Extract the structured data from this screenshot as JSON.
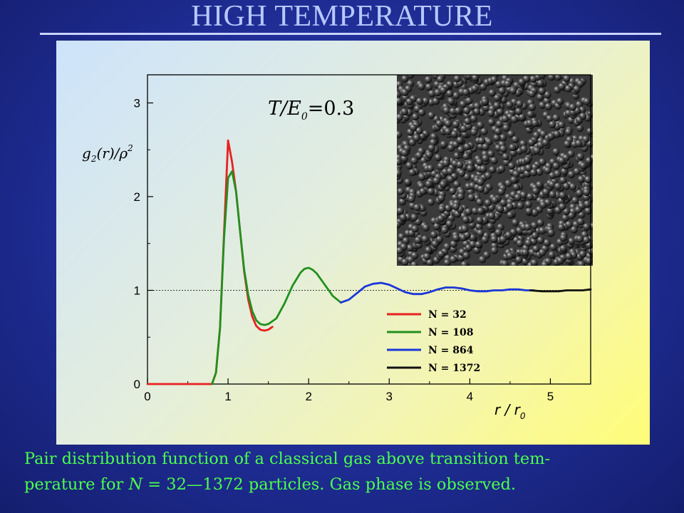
{
  "slide": {
    "title": "HIGH TEMPERATURE",
    "caption_line1": "Pair distribution function of a classical gas above transition tem-",
    "caption_line2_prefix": "perature for ",
    "caption_line2_var": "N",
    "caption_line2_eq": " = 32—1372",
    "caption_line2_suffix": " particles. Gas phase is observed."
  },
  "colors": {
    "title": "#b8c8ff",
    "caption": "#4cff4c",
    "background": "#1f2d95"
  },
  "chart_data": {
    "type": "line",
    "ylabel_main": "g",
    "ylabel_sub": "2",
    "ylabel_rest": "(r)/ρ",
    "ylabel_sup": "2",
    "xlabel_main": "r / r",
    "xlabel_sub": "0",
    "annotation_main": "T/E",
    "annotation_sub": "0",
    "annotation_value": "=0.3",
    "xlim": [
      0,
      5.5
    ],
    "ylim": [
      0,
      3.3
    ],
    "xticks": [
      0,
      1,
      2,
      3,
      4,
      5
    ],
    "yticks": [
      0,
      1,
      2,
      3
    ],
    "reference_line_y": 1,
    "legend_position": "center-right",
    "inset": "snapshot of particle configuration (gas phase)",
    "series": [
      {
        "name": "N = 32",
        "color": "#e82020",
        "x": [
          0,
          0.8,
          0.85,
          0.9,
          0.95,
          1.0,
          1.05,
          1.1,
          1.15,
          1.2,
          1.25,
          1.3,
          1.35,
          1.4,
          1.45,
          1.5,
          1.55
        ],
        "y": [
          0,
          0,
          0.12,
          0.6,
          1.6,
          2.6,
          2.37,
          2.05,
          1.62,
          1.2,
          0.9,
          0.72,
          0.62,
          0.58,
          0.57,
          0.58,
          0.61
        ]
      },
      {
        "name": "N = 108",
        "color": "#22901e",
        "x": [
          0.8,
          0.85,
          0.9,
          0.95,
          1.0,
          1.05,
          1.1,
          1.15,
          1.2,
          1.25,
          1.3,
          1.35,
          1.4,
          1.45,
          1.5,
          1.6,
          1.7,
          1.8,
          1.9,
          1.95,
          2.0,
          2.05,
          2.1,
          2.2,
          2.3,
          2.4
        ],
        "y": [
          0,
          0.12,
          0.6,
          1.55,
          2.2,
          2.27,
          2.05,
          1.62,
          1.22,
          0.95,
          0.78,
          0.68,
          0.64,
          0.63,
          0.64,
          0.7,
          0.86,
          1.05,
          1.19,
          1.23,
          1.24,
          1.22,
          1.18,
          1.06,
          0.94,
          0.87
        ]
      },
      {
        "name": "N = 864",
        "color": "#1a36d8",
        "x": [
          2.4,
          2.5,
          2.6,
          2.7,
          2.8,
          2.9,
          3.0,
          3.1,
          3.2,
          3.3,
          3.4,
          3.5,
          3.6,
          3.7,
          3.8,
          3.9,
          4.0,
          4.1,
          4.2,
          4.3,
          4.4,
          4.5,
          4.6,
          4.7,
          4.8
        ],
        "y": [
          0.87,
          0.9,
          0.97,
          1.04,
          1.07,
          1.08,
          1.06,
          1.02,
          0.98,
          0.96,
          0.96,
          0.98,
          1.01,
          1.03,
          1.03,
          1.02,
          1.0,
          0.99,
          0.99,
          1.0,
          1.0,
          1.01,
          1.01,
          1.0,
          1.0
        ]
      },
      {
        "name": "N = 1372",
        "color": "#111111",
        "x": [
          4.75,
          4.9,
          5.0,
          5.1,
          5.2,
          5.3,
          5.4,
          5.5
        ],
        "y": [
          1.0,
          0.99,
          0.99,
          0.99,
          1.0,
          1.0,
          1.0,
          1.01
        ]
      }
    ]
  }
}
